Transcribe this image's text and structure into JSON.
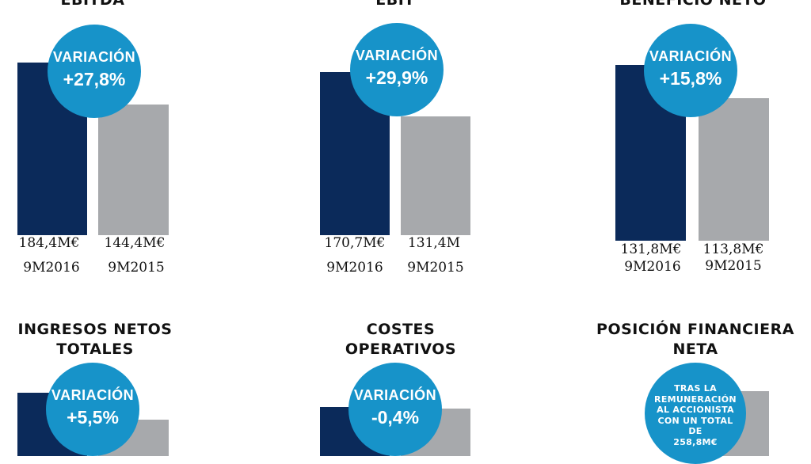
{
  "chart_data": [
    {
      "type": "bar",
      "title": "EBITDA",
      "categories": [
        "9M2016",
        "9M2015"
      ],
      "values": [
        184.4,
        144.4
      ],
      "value_labels": [
        "184,4M€",
        "144,4M€"
      ],
      "variation_label": "VARIACIÓN",
      "variation": "+27,8%"
    },
    {
      "type": "bar",
      "title": "EBIT",
      "categories": [
        "9M2016",
        "9M2015"
      ],
      "values": [
        170.7,
        131.4
      ],
      "value_labels": [
        "170,7M€",
        "131,4M"
      ],
      "variation_label": "VARIACIÓN",
      "variation": "+29,9%"
    },
    {
      "type": "bar",
      "title": "BENEFICIO NETO",
      "categories": [
        "9M2016",
        "9M2015"
      ],
      "values": [
        131.8,
        113.8
      ],
      "value_labels": [
        "131,8M€",
        "113,8M€"
      ],
      "variation_label": "VARIACIÓN",
      "variation": "+15,8%"
    },
    {
      "type": "bar",
      "title": "INGRESOS NETOS TOTALES",
      "title_lines": [
        "INGRESOS NETOS",
        "TOTALES"
      ],
      "variation_label": "VARIACIÓN",
      "variation": "+5,5%"
    },
    {
      "type": "bar",
      "title": "COSTES OPERATIVOS",
      "title_lines": [
        "COSTES",
        "OPERATIVOS"
      ],
      "variation_label": "VARIACIÓN",
      "variation": "-0,4%"
    },
    {
      "type": "bar",
      "title": "POSICIÓN FINANCIERA NETA",
      "title_lines": [
        "POSICIÓN FINANCIERA",
        "NETA"
      ],
      "note_lines": [
        "TRAS LA",
        "REMUNERACIÓN",
        "AL ACCIONISTA",
        "CON UN TOTAL DE",
        "258,8M€"
      ]
    }
  ],
  "colors": {
    "current_bar": "#0b2a5a",
    "previous_bar": "#a7a9ac",
    "variation_circle": "#1793c9"
  }
}
